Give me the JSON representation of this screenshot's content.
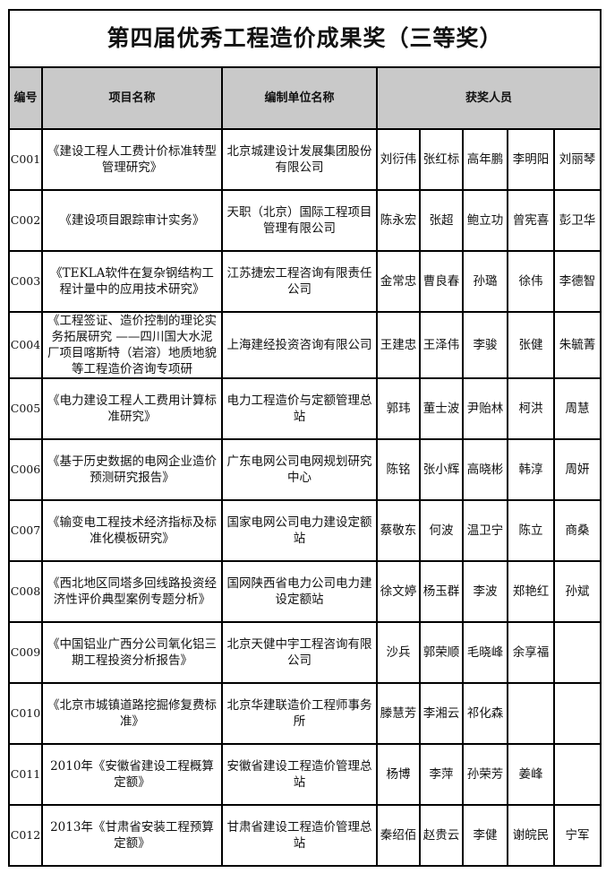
{
  "title": "第四届优秀工程造价成果奖（三等奖）",
  "headers": {
    "code": "编号",
    "project": "项目名称",
    "unit": "编制单位名称",
    "people": "获奖人员"
  },
  "rows": [
    {
      "code": "C001",
      "project": "《建设工程人工费计价标准转型管理研究》",
      "unit": "北京城建设计发展集团股份有限公司",
      "people": [
        "刘衍伟",
        "张红标",
        "高年鹏",
        "李明阳",
        "刘丽琴"
      ]
    },
    {
      "code": "C002",
      "project": "《建设项目跟踪审计实务》",
      "unit": "天职（北京）国际工程项目管理有限公司",
      "people": [
        "陈永宏",
        "张超",
        "鲍立功",
        "曾宪喜",
        "彭卫华"
      ]
    },
    {
      "code": "C003",
      "project": "《TEKLA软件在复杂钢结构工程计量中的应用技术研究》",
      "unit": "江苏捷宏工程咨询有限责任公司",
      "people": [
        "金常忠",
        "曹良春",
        "孙璐",
        "徐伟",
        "李德智"
      ]
    },
    {
      "code": "C004",
      "project": "《工程签证、造价控制的理论实务拓展研究 ——四川国大水泥厂项目喀斯特（岩溶）地质地貌等工程造价咨询专项研",
      "unit": "上海建经投资咨询有限公司",
      "people": [
        "王建忠",
        "王泽伟",
        "李骏",
        "张健",
        "朱毓菁"
      ]
    },
    {
      "code": "C005",
      "project": "《电力建设工程人工费用计算标准研究》",
      "unit": "电力工程造价与定额管理总站",
      "people": [
        "郭玮",
        "董士波",
        "尹贻林",
        "柯洪",
        "周慧"
      ]
    },
    {
      "code": "C006",
      "project": "《基于历史数据的电网企业造价预测研究报告》",
      "unit": "广东电网公司电网规划研究中心",
      "people": [
        "陈铭",
        "张小辉",
        "高晓彬",
        "韩淳",
        "周妍"
      ]
    },
    {
      "code": "C007",
      "project": "《输变电工程技术经济指标及标准化模板研究》",
      "unit": "国家电网公司电力建设定额站",
      "people": [
        "蔡敬东",
        "何波",
        "温卫宁",
        "陈立",
        "商桑"
      ]
    },
    {
      "code": "C008",
      "project": "《西北地区同塔多回线路投资经济性评价典型案例专题分析》",
      "unit": "国网陕西省电力公司电力建设定额站",
      "people": [
        "徐文婷",
        "杨玉群",
        "李波",
        "郑艳红",
        "孙斌"
      ]
    },
    {
      "code": "C009",
      "project": "《中国铝业广西分公司氧化铝三期工程投资分析报告》",
      "unit": "北京天健中宇工程咨询有限公司",
      "people": [
        "沙兵",
        "郭荣顺",
        "毛晓峰",
        "余享福",
        ""
      ]
    },
    {
      "code": "C010",
      "project": "《北京市城镇道路挖掘修复费标准》",
      "unit": "北京华建联造价工程师事务所",
      "people": [
        "滕慧芳",
        "李湘云",
        "祁化森",
        "",
        ""
      ]
    },
    {
      "code": "C011",
      "project": "2010年《安徽省建设工程概算定额》",
      "unit": "安徽省建设工程造价管理总站",
      "people": [
        "杨博",
        "李萍",
        "孙荣芳",
        "姜峰",
        ""
      ]
    },
    {
      "code": "C012",
      "project": "2013年《甘肃省安装工程预算定额》",
      "unit": "甘肃省建设工程造价管理总站",
      "people": [
        "秦绍佰",
        "赵贵云",
        "李健",
        "谢皖民",
        "宁军"
      ]
    }
  ]
}
